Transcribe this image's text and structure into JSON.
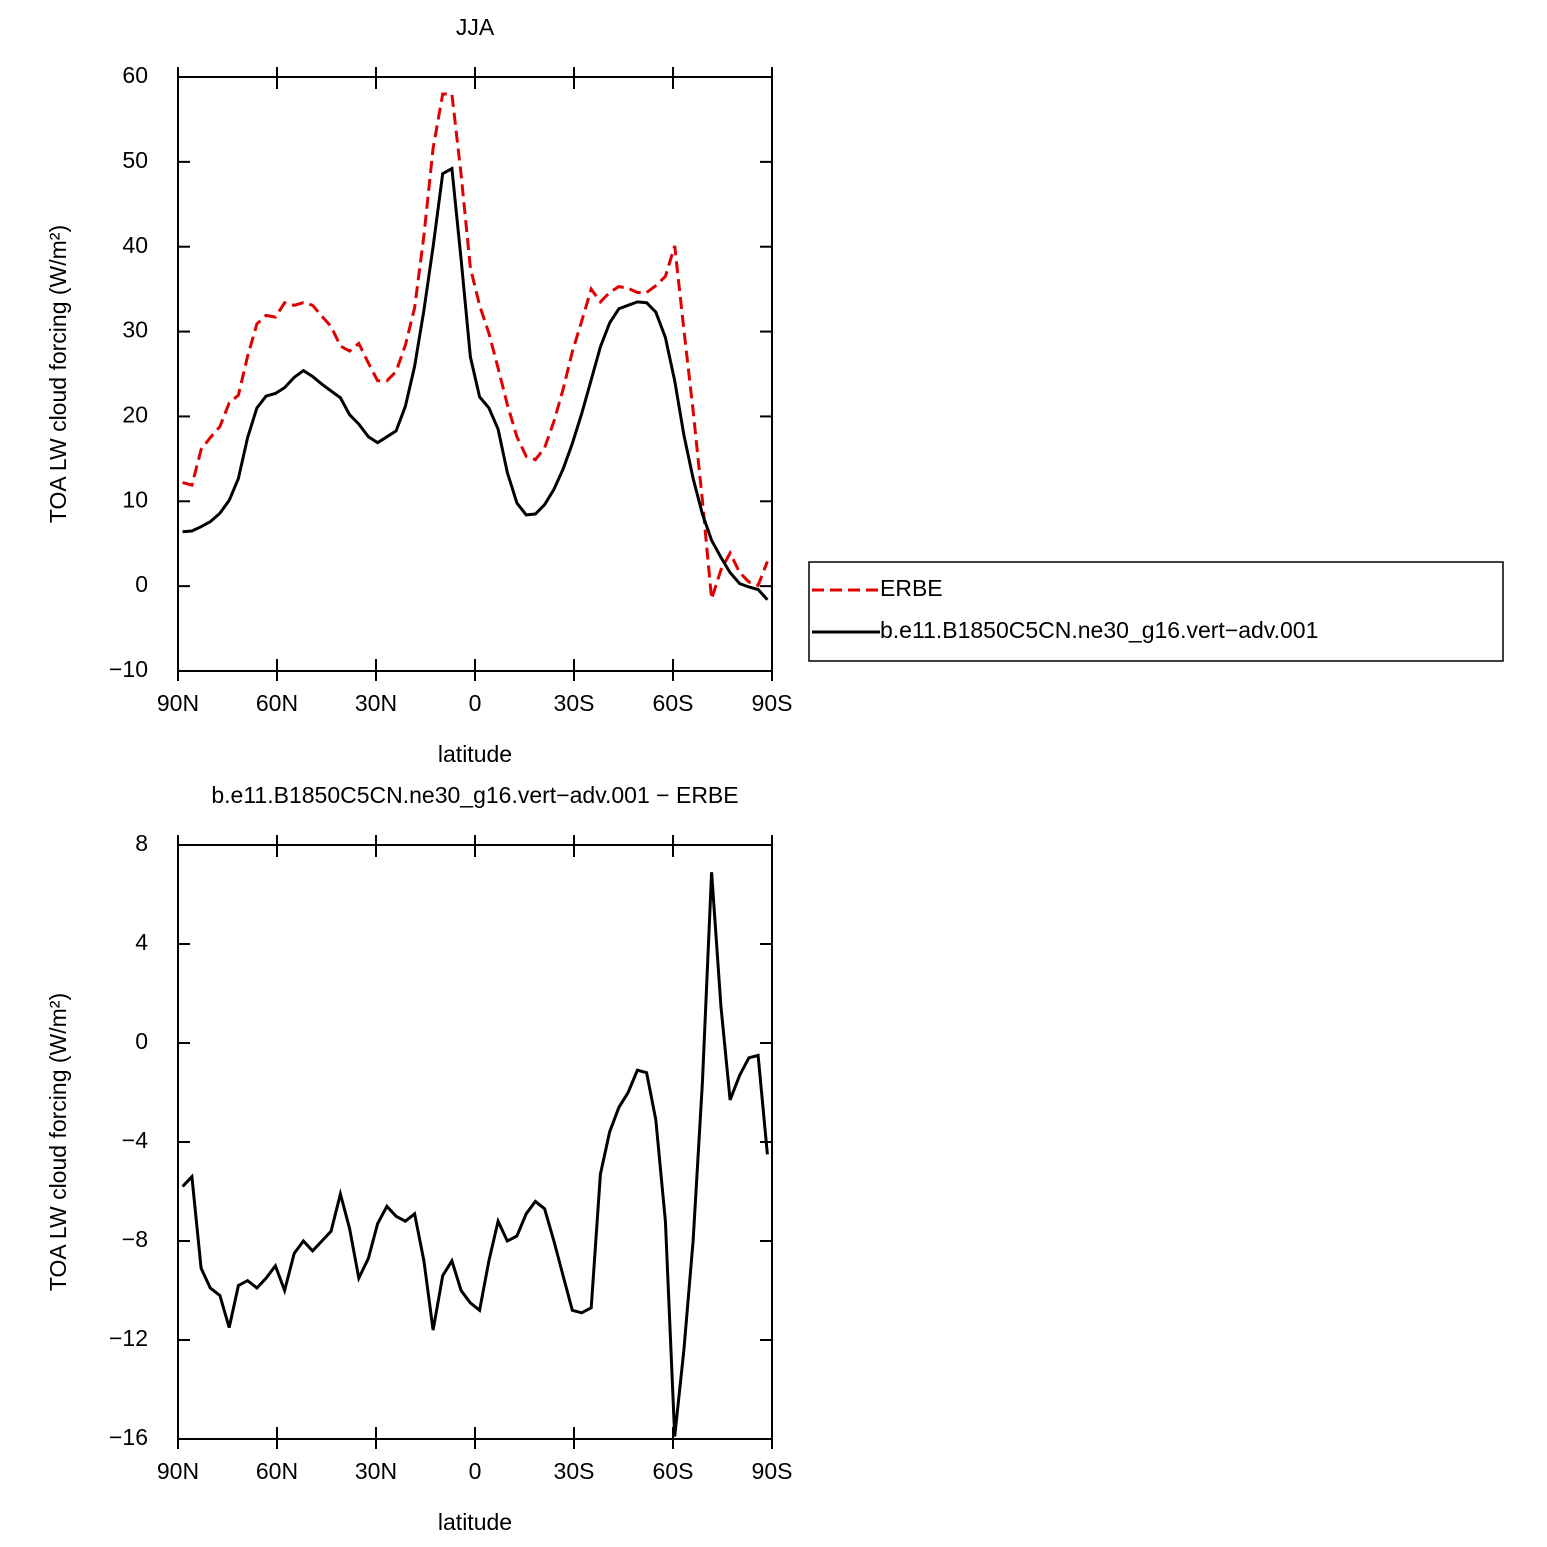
{
  "chart_data": [
    {
      "type": "line",
      "title": "JJA",
      "xlabel": "latitude",
      "ylabel": "TOA LW cloud forcing (W/m²)",
      "x": [
        88.6,
        85.8,
        83.0,
        80.2,
        77.3,
        74.5,
        71.7,
        68.9,
        66.1,
        63.3,
        60.5,
        57.7,
        54.8,
        52.0,
        49.2,
        46.4,
        43.6,
        40.8,
        38.0,
        35.2,
        32.3,
        29.5,
        26.7,
        23.9,
        21.1,
        18.3,
        15.5,
        12.7,
        9.8,
        7.0,
        4.2,
        1.4,
        -1.4,
        -4.2,
        -7.0,
        -9.8,
        -12.7,
        -15.5,
        -18.3,
        -21.1,
        -23.9,
        -26.7,
        -29.5,
        -32.3,
        -35.2,
        -38.0,
        -40.8,
        -43.6,
        -46.4,
        -49.2,
        -52.0,
        -54.8,
        -57.7,
        -60.5,
        -63.3,
        -66.1,
        -68.9,
        -71.7,
        -74.5,
        -77.3,
        -80.2,
        -83.0,
        -85.8,
        -88.6
      ],
      "series": [
        {
          "name": "ERBE",
          "color": "#e00000",
          "dash": "dashed",
          "values": [
            12.2,
            11.9,
            16.1,
            17.5,
            18.8,
            21.6,
            22.5,
            27.1,
            30.9,
            31.9,
            31.7,
            33.4,
            33.1,
            33.4,
            33.1,
            31.8,
            30.6,
            28.3,
            27.7,
            28.6,
            26.3,
            24.2,
            24.2,
            25.3,
            28.4,
            32.8,
            41.3,
            51.6,
            58.0,
            58.0,
            48.5,
            37.5,
            33.1,
            29.8,
            25.7,
            21.4,
            17.6,
            15.3,
            14.9,
            16.3,
            19.4,
            23.2,
            27.6,
            31.2,
            35.0,
            33.5,
            34.6,
            35.3,
            35.1,
            34.6,
            34.6,
            35.4,
            36.5,
            40.1,
            30.2,
            20.7,
            10.1,
            -1.5,
            1.9,
            3.9,
            1.6,
            0.5,
            0.1,
            2.9
          ]
        },
        {
          "name": "b.e11.B1850C5CN.ne30_g16.vert−adv.001",
          "color": "#000000",
          "dash": "solid",
          "values": [
            6.4,
            6.5,
            7.0,
            7.6,
            8.6,
            10.1,
            12.7,
            17.5,
            21.0,
            22.4,
            22.7,
            23.4,
            24.6,
            25.4,
            24.7,
            23.8,
            23.0,
            22.2,
            20.2,
            19.1,
            17.6,
            16.9,
            17.6,
            18.3,
            21.2,
            25.9,
            32.5,
            40.0,
            48.6,
            49.2,
            38.5,
            27.0,
            22.3,
            21.0,
            18.5,
            13.4,
            9.8,
            8.4,
            8.5,
            9.6,
            11.4,
            13.8,
            16.8,
            20.3,
            24.3,
            28.2,
            31.0,
            32.7,
            33.1,
            33.5,
            33.4,
            32.3,
            29.3,
            24.2,
            17.8,
            12.7,
            8.5,
            5.4,
            3.4,
            1.6,
            0.3,
            -0.1,
            -0.4,
            -1.6
          ]
        }
      ],
      "xlim": [
        90,
        -90
      ],
      "xticks": [
        {
          "value": 90,
          "label": "90N"
        },
        {
          "value": 60,
          "label": "60N"
        },
        {
          "value": 30,
          "label": "30N"
        },
        0,
        {
          "value": -30,
          "label": "30S"
        },
        {
          "value": -60,
          "label": "60S"
        },
        {
          "value": -90,
          "label": "90S"
        }
      ],
      "ylim": [
        -10,
        60
      ],
      "yticks": [
        {
          "value": -10,
          "label": "−10"
        },
        0,
        10,
        20,
        30,
        40,
        50,
        60
      ],
      "legend": "right"
    },
    {
      "type": "line",
      "title": "b.e11.B1850C5CN.ne30_g16.vert−adv.001  −  ERBE",
      "xlabel": "latitude",
      "ylabel": "TOA LW cloud forcing (W/m²)",
      "x": [
        88.6,
        85.8,
        83.0,
        80.2,
        77.3,
        74.5,
        71.7,
        68.9,
        66.1,
        63.3,
        60.5,
        57.7,
        54.8,
        52.0,
        49.2,
        46.4,
        43.6,
        40.8,
        38.0,
        35.2,
        32.3,
        29.5,
        26.7,
        23.9,
        21.1,
        18.3,
        15.5,
        12.7,
        9.8,
        7.0,
        4.2,
        1.4,
        -1.4,
        -4.2,
        -7.0,
        -9.8,
        -12.7,
        -15.5,
        -18.3,
        -21.1,
        -23.9,
        -26.7,
        -29.5,
        -32.3,
        -35.2,
        -38.0,
        -40.8,
        -43.6,
        -46.4,
        -49.2,
        -52.0,
        -54.8,
        -57.7,
        -60.5,
        -63.3,
        -66.1,
        -68.9,
        -71.7,
        -74.5,
        -77.3,
        -80.2,
        -83.0,
        -85.8,
        -88.6
      ],
      "series": [
        {
          "color": "#000000",
          "dash": "solid",
          "values": [
            -5.8,
            -5.4,
            -9.1,
            -9.9,
            -10.2,
            -11.5,
            -9.8,
            -9.6,
            -9.9,
            -9.5,
            -9.0,
            -10.0,
            -8.5,
            -8.0,
            -8.4,
            -8.0,
            -7.6,
            -6.1,
            -7.5,
            -9.5,
            -8.7,
            -7.3,
            -6.6,
            -7.0,
            -7.2,
            -6.9,
            -8.8,
            -11.6,
            -9.4,
            -8.8,
            -10.0,
            -10.5,
            -10.8,
            -8.8,
            -7.2,
            -8.0,
            -7.8,
            -6.9,
            -6.4,
            -6.7,
            -8.0,
            -9.4,
            -10.8,
            -10.9,
            -10.7,
            -5.3,
            -3.6,
            -2.6,
            -2.0,
            -1.1,
            -1.2,
            -3.1,
            -7.2,
            -15.9,
            -12.4,
            -8.0,
            -1.6,
            6.9,
            1.5,
            -2.3,
            -1.3,
            -0.6,
            -0.5,
            -4.5
          ]
        }
      ],
      "xlim": [
        90,
        -90
      ],
      "xticks": [
        {
          "value": 90,
          "label": "90N"
        },
        {
          "value": 60,
          "label": "60N"
        },
        {
          "value": 30,
          "label": "30N"
        },
        0,
        {
          "value": -30,
          "label": "30S"
        },
        {
          "value": -60,
          "label": "60S"
        },
        {
          "value": -90,
          "label": "90S"
        }
      ],
      "ylim": [
        -16,
        8
      ],
      "yticks": [
        {
          "value": -16,
          "label": "−16"
        },
        {
          "value": -12,
          "label": "−12"
        },
        {
          "value": -8,
          "label": "−8"
        },
        {
          "value": -4,
          "label": "−4"
        },
        0,
        4,
        8
      ]
    }
  ]
}
